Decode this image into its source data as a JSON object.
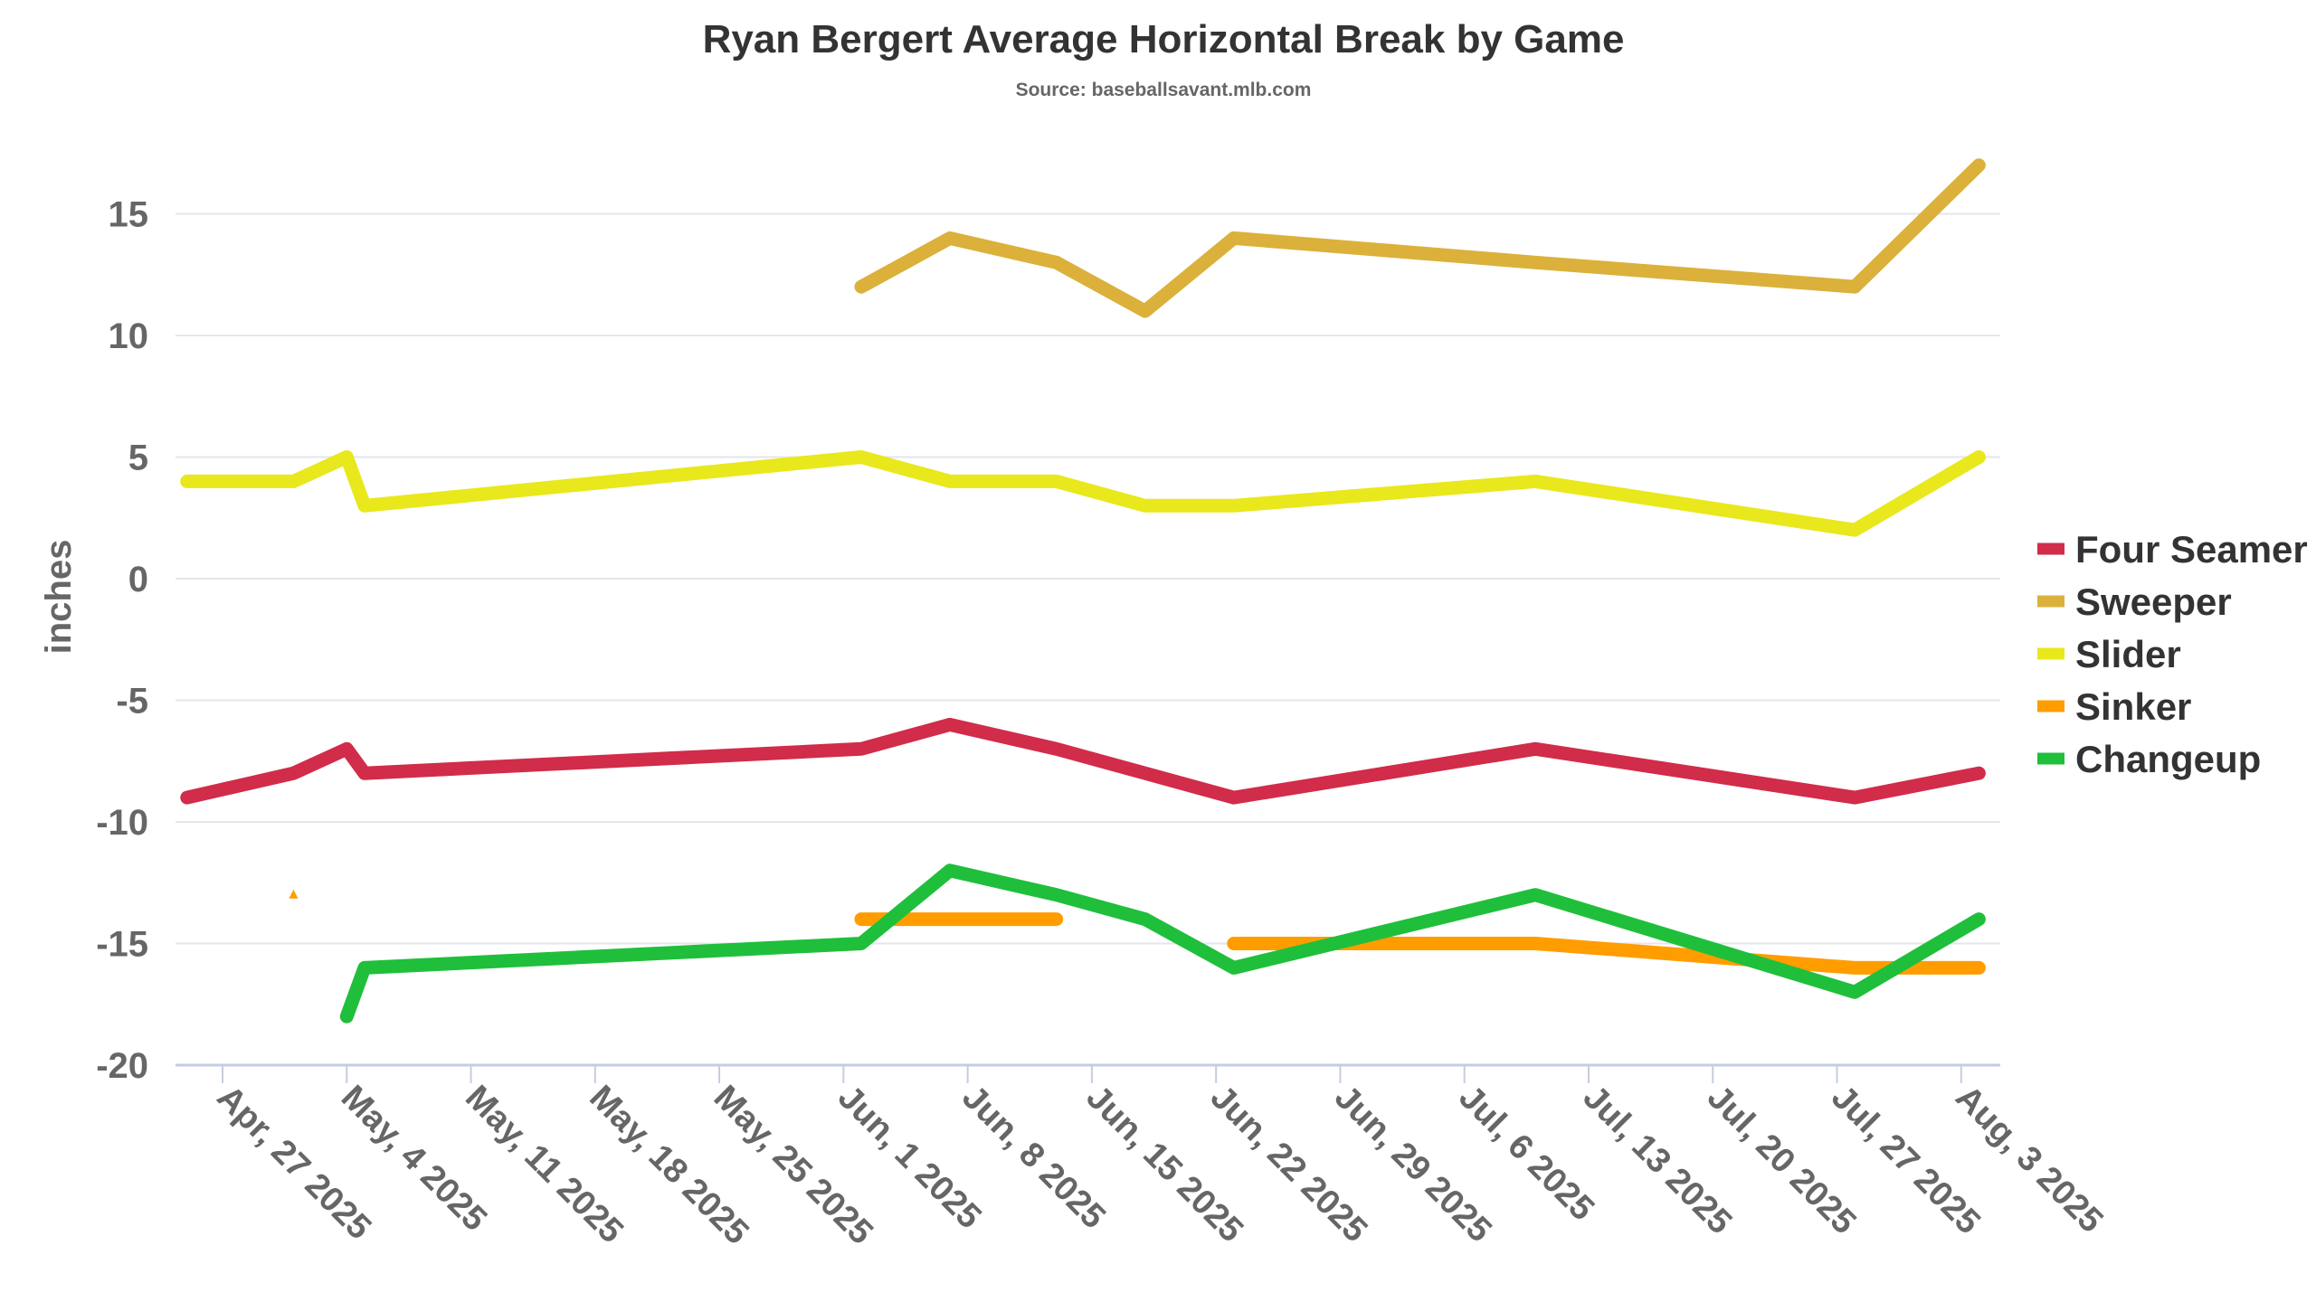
{
  "chart_data": {
    "type": "line",
    "title": "Ryan Bergert Average Horizontal Break by Game",
    "subtitle": "Source: baseballsavant.mlb.com",
    "xlabel": "",
    "ylabel": "inches",
    "ylim": [
      -20,
      17.5
    ],
    "yticks": [
      15,
      10,
      5,
      0,
      -5,
      -10,
      -15,
      -20
    ],
    "ytick_labels": [
      "15",
      "10",
      "5",
      "0",
      "-5",
      "-10",
      "-15",
      "-20"
    ],
    "xticks": [
      "2025-04-27",
      "2025-05-04",
      "2025-05-11",
      "2025-05-18",
      "2025-05-25",
      "2025-06-01",
      "2025-06-08",
      "2025-06-15",
      "2025-06-22",
      "2025-06-29",
      "2025-07-06",
      "2025-07-13",
      "2025-07-20",
      "2025-07-27",
      "2025-08-03"
    ],
    "xtick_labels": [
      "Apr, 27 2025",
      "May, 4 2025",
      "May, 11 2025",
      "May, 18 2025",
      "May, 25 2025",
      "Jun, 1 2025",
      "Jun, 8 2025",
      "Jun, 15 2025",
      "Jun, 22 2025",
      "Jun, 29 2025",
      "Jul, 6 2025",
      "Jul, 13 2025",
      "Jul, 20 2025",
      "Jul, 27 2025",
      "Aug, 3 2025"
    ],
    "grid": true,
    "legend_position": "right",
    "x": [
      "2025-04-25",
      "2025-05-01",
      "2025-05-04",
      "2025-05-05",
      "2025-06-02",
      "2025-06-07",
      "2025-06-13",
      "2025-06-18",
      "2025-06-23",
      "2025-07-10",
      "2025-07-28",
      "2025-08-04"
    ],
    "series": [
      {
        "name": "Four Seamer",
        "color": "#d12c4a",
        "values": [
          -9,
          -8,
          -7,
          -8,
          -7,
          -6,
          -7,
          -8,
          -9,
          -7,
          -9,
          -8
        ]
      },
      {
        "name": "Sweeper",
        "color": "#dbb13b",
        "values": [
          null,
          null,
          null,
          null,
          12,
          14,
          13,
          11,
          14,
          13,
          12,
          17
        ]
      },
      {
        "name": "Slider",
        "color": "#e8e81c",
        "values": [
          4,
          4,
          5,
          3,
          5,
          4,
          4,
          3,
          3,
          4,
          2,
          5
        ]
      },
      {
        "name": "Sinker",
        "color": "#ff9d00",
        "values": [
          null,
          -13,
          null,
          null,
          -14,
          -14,
          -14,
          null,
          -15,
          -15,
          -16,
          -16
        ]
      },
      {
        "name": "Changeup",
        "color": "#1fbf3b",
        "values": [
          null,
          null,
          -18,
          -16,
          -15,
          -12,
          -13,
          -14,
          -16,
          -13,
          -17,
          -14
        ]
      }
    ]
  }
}
